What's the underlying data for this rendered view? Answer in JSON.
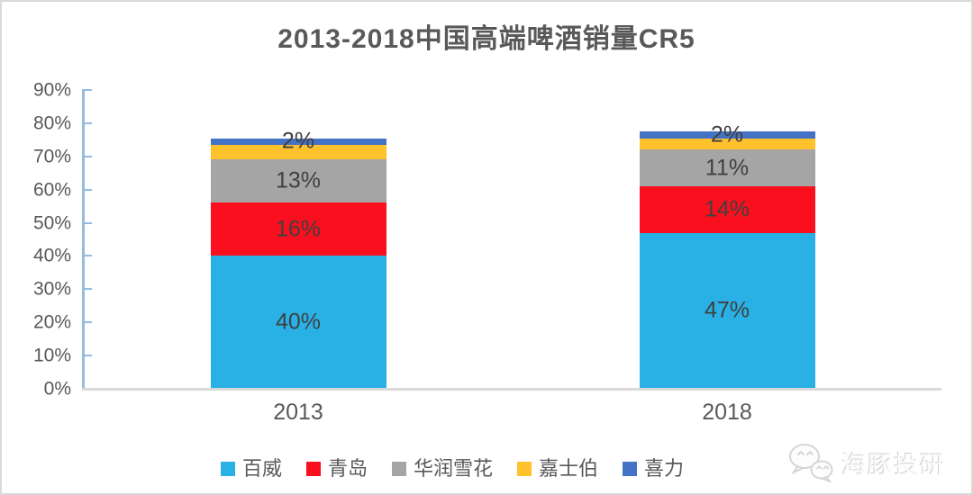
{
  "chart_data": {
    "type": "bar",
    "stacked": true,
    "title": "2013-2018中国高端啤酒销量CR5",
    "categories": [
      "2013",
      "2018"
    ],
    "series": [
      {
        "name": "百威",
        "color": "#29B1E5",
        "values": [
          40,
          47
        ],
        "labels": [
          "40%",
          "47%"
        ]
      },
      {
        "name": "青岛",
        "color": "#FA0F1E",
        "values": [
          16,
          14
        ],
        "labels": [
          "16%",
          "14%"
        ]
      },
      {
        "name": "华润雪花",
        "color": "#A5A5A5",
        "values": [
          13,
          11
        ],
        "labels": [
          "13%",
          "11%"
        ]
      },
      {
        "name": "嘉士伯",
        "color": "#FFC22D",
        "values": [
          4.5,
          3.5
        ],
        "labels": [
          "",
          ""
        ]
      },
      {
        "name": "喜力",
        "color": "#4472C4",
        "values": [
          2,
          2
        ],
        "labels": [
          "2%",
          "2%"
        ]
      }
    ],
    "totals": [
      "76%",
      "78%"
    ],
    "ylim": [
      0,
      90
    ],
    "yticks": [
      {
        "label": "0%",
        "value": 0
      },
      {
        "label": "10%",
        "value": 10
      },
      {
        "label": "20%",
        "value": 20
      },
      {
        "label": "30%",
        "value": 30
      },
      {
        "label": "40%",
        "value": 40
      },
      {
        "label": "50%",
        "value": 50
      },
      {
        "label": "60%",
        "value": 60
      },
      {
        "label": "70%",
        "value": 70
      },
      {
        "label": "80%",
        "value": 80
      },
      {
        "label": "90%",
        "value": 90
      }
    ],
    "grid": false,
    "legend_position": "bottom",
    "xlabel": "",
    "ylabel": ""
  },
  "watermark": {
    "text": "海豚投研",
    "icon": "wechat-chat-bubbles-icon"
  },
  "colors": {
    "axis_line": "#94BBE0",
    "baseline": "#D9D9D9",
    "axis_text": "#595959",
    "data_label": "#404040",
    "canvas_border": "#D9D9D9"
  }
}
